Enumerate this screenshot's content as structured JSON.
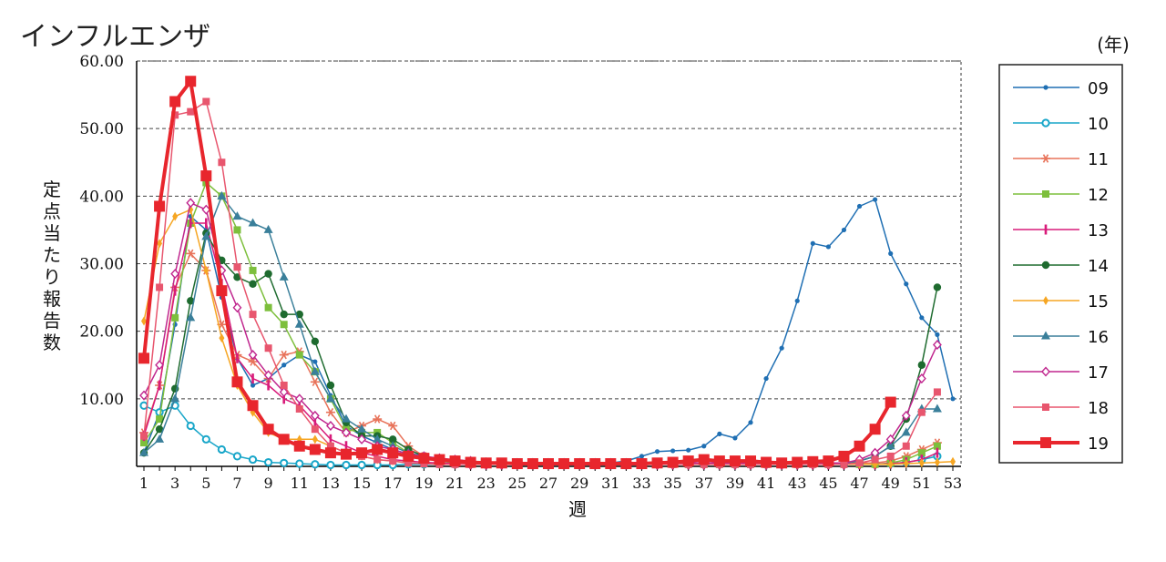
{
  "chart_data": {
    "type": "line",
    "title": "インフルエンザ",
    "xlabel": "週",
    "ylabel": "定点当たり報告数",
    "legend_unit": "(年)",
    "legend_position": "right",
    "grid": "horizontal-dashed",
    "xlim": [
      1,
      53
    ],
    "ylim": [
      0,
      60
    ],
    "x_ticks": [
      1,
      3,
      5,
      7,
      9,
      11,
      13,
      15,
      17,
      19,
      21,
      23,
      25,
      27,
      29,
      31,
      33,
      35,
      37,
      39,
      41,
      43,
      45,
      47,
      49,
      51,
      53
    ],
    "y_ticks": [
      "10.00",
      "20.00",
      "30.00",
      "40.00",
      "50.00",
      "60.00"
    ],
    "series": [
      {
        "name": "09",
        "color": "#1f6fb3",
        "marker": "dot",
        "width": 1.5,
        "x": [
          1,
          2,
          3,
          4,
          5,
          6,
          7,
          8,
          9,
          10,
          11,
          12,
          13,
          14,
          15,
          16,
          17,
          18,
          19,
          20,
          21,
          22,
          23,
          24,
          25,
          26,
          27,
          28,
          29,
          30,
          31,
          32,
          33,
          34,
          35,
          36,
          37,
          38,
          39,
          40,
          41,
          42,
          43,
          44,
          45,
          46,
          47,
          48,
          49,
          50,
          51,
          52,
          53
        ],
        "values": [
          2.0,
          8.0,
          21.0,
          37.0,
          35.0,
          25.0,
          16.0,
          12.0,
          13.0,
          15.0,
          16.5,
          15.5,
          10.5,
          6.0,
          4.5,
          3.5,
          2.5,
          1.8,
          1.2,
          1.0,
          0.8,
          0.6,
          0.5,
          0.5,
          0.4,
          0.4,
          0.4,
          0.4,
          0.4,
          0.4,
          0.5,
          0.8,
          1.5,
          2.2,
          2.3,
          2.4,
          3.0,
          4.8,
          4.2,
          6.5,
          13.0,
          17.5,
          24.5,
          33.0,
          32.5,
          35.0,
          38.5,
          39.5,
          31.5,
          27.0,
          22.0,
          19.5,
          10.0
        ]
      },
      {
        "name": "10",
        "color": "#18a6c9",
        "marker": "circle",
        "width": 1.5,
        "x": [
          1,
          2,
          3,
          4,
          5,
          6,
          7,
          8,
          9,
          10,
          11,
          12,
          13,
          14,
          15,
          16,
          17,
          18,
          19,
          20,
          21,
          22,
          23,
          24,
          25,
          26,
          27,
          28,
          29,
          30,
          31,
          32,
          33,
          34,
          35,
          36,
          37,
          38,
          39,
          40,
          41,
          42,
          43,
          44,
          45,
          46,
          47,
          48,
          49,
          50,
          51,
          52
        ],
        "values": [
          9.0,
          8.0,
          9.0,
          6.0,
          4.0,
          2.5,
          1.5,
          1.0,
          0.6,
          0.5,
          0.4,
          0.3,
          0.2,
          0.2,
          0.2,
          0.2,
          0.2,
          0.3,
          0.3,
          0.3,
          0.3,
          0.3,
          0.3,
          0.3,
          0.3,
          0.3,
          0.3,
          0.3,
          0.3,
          0.3,
          0.3,
          0.3,
          0.3,
          0.3,
          0.3,
          0.3,
          0.3,
          0.3,
          0.3,
          0.3,
          0.3,
          0.3,
          0.3,
          0.3,
          0.3,
          0.3,
          0.3,
          0.3,
          0.4,
          0.6,
          1.0,
          1.5
        ]
      },
      {
        "name": "11",
        "color": "#e8735a",
        "marker": "asterisk",
        "width": 1.5,
        "x": [
          1,
          2,
          3,
          4,
          5,
          6,
          7,
          8,
          9,
          10,
          11,
          12,
          13,
          14,
          15,
          16,
          17,
          18,
          19,
          20,
          21,
          22,
          23,
          24,
          25,
          26,
          27,
          28,
          29,
          30,
          31,
          32,
          33,
          34,
          35,
          36,
          37,
          38,
          39,
          40,
          41,
          42,
          43,
          44,
          45,
          46,
          47,
          48,
          49,
          50,
          51,
          52
        ],
        "values": [
          5.0,
          12.0,
          26.5,
          31.5,
          29.0,
          21.0,
          16.5,
          15.5,
          13.0,
          16.5,
          17.0,
          12.5,
          8.0,
          5.0,
          6.0,
          7.0,
          6.0,
          3.0,
          1.5,
          1.0,
          0.8,
          0.6,
          0.5,
          0.5,
          0.5,
          0.5,
          0.5,
          0.5,
          0.5,
          0.5,
          0.5,
          0.5,
          0.5,
          0.5,
          0.5,
          0.5,
          0.5,
          0.5,
          0.5,
          0.5,
          0.5,
          0.5,
          0.5,
          0.5,
          0.5,
          0.5,
          0.5,
          0.5,
          0.8,
          1.5,
          2.5,
          3.5
        ]
      },
      {
        "name": "12",
        "color": "#7dbf3c",
        "marker": "square",
        "width": 1.5,
        "x": [
          1,
          2,
          3,
          4,
          5,
          6,
          7,
          8,
          9,
          10,
          11,
          12,
          13,
          14,
          15,
          16,
          17,
          18,
          19,
          20,
          21,
          22,
          23,
          24,
          25,
          26,
          27,
          28,
          29,
          30,
          31,
          32,
          33,
          34,
          35,
          36,
          37,
          38,
          39,
          40,
          41,
          42,
          43,
          44,
          45,
          46,
          47,
          48,
          49,
          50,
          51,
          52
        ],
        "values": [
          3.5,
          7.0,
          22.0,
          36.0,
          42.0,
          40.0,
          35.0,
          29.0,
          23.5,
          21.0,
          16.5,
          14.0,
          10.0,
          5.5,
          5.0,
          5.0,
          3.5,
          2.0,
          1.2,
          0.8,
          0.5,
          0.4,
          0.3,
          0.3,
          0.3,
          0.3,
          0.3,
          0.3,
          0.3,
          0.3,
          0.3,
          0.3,
          0.3,
          0.3,
          0.3,
          0.3,
          0.3,
          0.3,
          0.3,
          0.3,
          0.3,
          0.3,
          0.3,
          0.3,
          0.3,
          0.3,
          0.3,
          0.3,
          0.5,
          1.0,
          2.0,
          3.0
        ]
      },
      {
        "name": "13",
        "color": "#d81b7a",
        "marker": "bar",
        "width": 1.5,
        "x": [
          1,
          2,
          3,
          4,
          5,
          6,
          7,
          8,
          9,
          10,
          11,
          12,
          13,
          14,
          15,
          16,
          17,
          18,
          19,
          20,
          21,
          22,
          23,
          24,
          25,
          26,
          27,
          28,
          29,
          30,
          31,
          32,
          33,
          34,
          35,
          36,
          37,
          38,
          39,
          40,
          41,
          42,
          43,
          44,
          45,
          46,
          47,
          48,
          49,
          50,
          51,
          52
        ],
        "values": [
          4.5,
          12.0,
          26.0,
          36.0,
          36.0,
          27.0,
          16.0,
          13.0,
          12.0,
          10.0,
          9.0,
          6.5,
          4.0,
          3.0,
          2.0,
          1.5,
          1.0,
          0.8,
          0.6,
          0.5,
          0.4,
          0.3,
          0.3,
          0.3,
          0.3,
          0.3,
          0.3,
          0.3,
          0.3,
          0.3,
          0.3,
          0.3,
          0.3,
          0.3,
          0.3,
          0.3,
          0.3,
          0.3,
          0.3,
          0.3,
          0.3,
          0.3,
          0.3,
          0.3,
          0.3,
          0.3,
          0.3,
          0.3,
          0.4,
          0.6,
          1.0,
          2.0
        ]
      },
      {
        "name": "14",
        "color": "#1e6b2f",
        "marker": "dot-large",
        "width": 1.5,
        "x": [
          1,
          2,
          3,
          4,
          5,
          6,
          7,
          8,
          9,
          10,
          11,
          12,
          13,
          14,
          15,
          16,
          17,
          18,
          19,
          20,
          21,
          22,
          23,
          24,
          25,
          26,
          27,
          28,
          29,
          30,
          31,
          32,
          33,
          34,
          35,
          36,
          37,
          38,
          39,
          40,
          41,
          42,
          43,
          44,
          45,
          46,
          47,
          48,
          49,
          50,
          51,
          52
        ],
        "values": [
          2.0,
          5.5,
          11.5,
          24.5,
          34.5,
          30.5,
          28.0,
          27.0,
          28.5,
          22.5,
          22.5,
          18.5,
          12.0,
          6.5,
          4.5,
          4.5,
          4.0,
          2.5,
          1.5,
          1.0,
          0.8,
          0.6,
          0.5,
          0.5,
          0.5,
          0.5,
          0.5,
          0.5,
          0.5,
          0.5,
          0.5,
          0.5,
          0.5,
          0.5,
          0.5,
          0.5,
          0.5,
          0.5,
          0.5,
          0.5,
          0.5,
          0.5,
          0.5,
          0.5,
          0.5,
          0.5,
          0.8,
          1.5,
          3.0,
          7.0,
          15.0,
          26.5
        ]
      },
      {
        "name": "15",
        "color": "#f6a623",
        "marker": "diamond-filled",
        "width": 1.5,
        "x": [
          1,
          2,
          3,
          4,
          5,
          6,
          7,
          8,
          9,
          10,
          11,
          12,
          13,
          14,
          15,
          16,
          17,
          18,
          19,
          20,
          21,
          22,
          23,
          24,
          25,
          26,
          27,
          28,
          29,
          30,
          31,
          32,
          33,
          34,
          35,
          36,
          37,
          38,
          39,
          40,
          41,
          42,
          43,
          44,
          45,
          46,
          47,
          48,
          49,
          50,
          51,
          52,
          53
        ],
        "values": [
          21.5,
          33.0,
          37.0,
          38.0,
          29.0,
          19.0,
          12.0,
          8.0,
          5.0,
          4.0,
          4.0,
          4.0,
          3.0,
          2.0,
          1.5,
          1.0,
          0.8,
          0.5,
          0.4,
          0.3,
          0.3,
          0.3,
          0.3,
          0.3,
          0.3,
          0.3,
          0.3,
          0.3,
          0.3,
          0.3,
          0.3,
          0.3,
          0.3,
          0.3,
          0.3,
          0.3,
          0.3,
          0.3,
          0.3,
          0.3,
          0.3,
          0.3,
          0.3,
          0.3,
          0.3,
          0.3,
          0.3,
          0.3,
          0.3,
          0.4,
          0.5,
          0.6,
          0.7
        ]
      },
      {
        "name": "16",
        "color": "#3a7f9a",
        "marker": "triangle",
        "width": 1.5,
        "x": [
          1,
          2,
          3,
          4,
          5,
          6,
          7,
          8,
          9,
          10,
          11,
          12,
          13,
          14,
          15,
          16,
          17,
          18,
          19,
          20,
          21,
          22,
          23,
          24,
          25,
          26,
          27,
          28,
          29,
          30,
          31,
          32,
          33,
          34,
          35,
          36,
          37,
          38,
          39,
          40,
          41,
          42,
          43,
          44,
          45,
          46,
          47,
          48,
          49,
          50,
          51,
          52
        ],
        "values": [
          2.0,
          4.0,
          10.0,
          22.0,
          34.0,
          40.0,
          37.0,
          36.0,
          35.0,
          28.0,
          21.0,
          14.0,
          10.0,
          7.0,
          5.5,
          4.0,
          3.0,
          2.0,
          1.5,
          1.0,
          0.8,
          0.6,
          0.5,
          0.5,
          0.5,
          0.5,
          0.5,
          0.5,
          0.5,
          0.5,
          0.5,
          0.5,
          0.5,
          0.5,
          0.5,
          0.5,
          0.5,
          0.5,
          0.5,
          0.5,
          0.5,
          0.5,
          0.5,
          0.5,
          0.5,
          0.5,
          0.8,
          1.5,
          3.0,
          5.0,
          8.5,
          8.5
        ]
      },
      {
        "name": "17",
        "color": "#c0268e",
        "marker": "diamond-open",
        "width": 1.5,
        "x": [
          1,
          2,
          3,
          4,
          5,
          6,
          7,
          8,
          9,
          10,
          11,
          12,
          13,
          14,
          15,
          16,
          17,
          18,
          19,
          20,
          21,
          22,
          23,
          24,
          25,
          26,
          27,
          28,
          29,
          30,
          31,
          32,
          33,
          34,
          35,
          36,
          37,
          38,
          39,
          40,
          41,
          42,
          43,
          44,
          45,
          46,
          47,
          48,
          49,
          50,
          51,
          52
        ],
        "values": [
          10.5,
          15.0,
          28.5,
          39.0,
          38.0,
          29.0,
          23.5,
          16.5,
          13.5,
          11.0,
          10.0,
          7.5,
          6.0,
          5.0,
          4.0,
          3.0,
          2.5,
          1.8,
          1.5,
          1.2,
          1.0,
          0.8,
          0.6,
          0.5,
          0.5,
          0.5,
          0.5,
          0.5,
          0.5,
          0.5,
          0.5,
          0.5,
          0.5,
          0.5,
          0.5,
          0.5,
          0.5,
          0.5,
          0.5,
          0.5,
          0.5,
          0.5,
          0.5,
          0.5,
          0.5,
          0.5,
          1.0,
          2.0,
          4.0,
          7.5,
          13.0,
          18.0
        ]
      },
      {
        "name": "18",
        "color": "#e8566e",
        "marker": "square",
        "width": 1.5,
        "x": [
          1,
          2,
          3,
          4,
          5,
          6,
          7,
          8,
          9,
          10,
          11,
          12,
          13,
          14,
          15,
          16,
          17,
          18,
          19,
          20,
          21,
          22,
          23,
          24,
          25,
          26,
          27,
          28,
          29,
          30,
          31,
          32,
          33,
          34,
          35,
          36,
          37,
          38,
          39,
          40,
          41,
          42,
          43,
          44,
          45,
          46,
          47,
          48,
          49,
          50,
          51,
          52
        ],
        "values": [
          4.5,
          26.5,
          52.0,
          52.5,
          54.0,
          45.0,
          29.5,
          22.5,
          17.5,
          12.0,
          8.5,
          5.5,
          3.0,
          2.0,
          1.5,
          1.0,
          0.8,
          0.5,
          0.4,
          0.3,
          0.3,
          0.3,
          0.3,
          0.3,
          0.3,
          0.3,
          0.3,
          0.3,
          0.3,
          0.3,
          0.3,
          0.3,
          0.3,
          0.3,
          0.3,
          0.3,
          0.3,
          0.3,
          0.3,
          0.3,
          0.3,
          0.3,
          0.3,
          0.3,
          0.3,
          0.3,
          0.5,
          1.0,
          1.5,
          3.0,
          8.0,
          11.0
        ]
      },
      {
        "name": "19",
        "color": "#e8262d",
        "marker": "square-large",
        "width": 4,
        "x": [
          1,
          2,
          3,
          4,
          5,
          6,
          7,
          8,
          9,
          10,
          11,
          12,
          13,
          14,
          15,
          16,
          17,
          18,
          19,
          20,
          21,
          22,
          23,
          24,
          25,
          26,
          27,
          28,
          29,
          30,
          31,
          32,
          33,
          34,
          35,
          36,
          37,
          38,
          39,
          40,
          41,
          42,
          43,
          44,
          45,
          46,
          47,
          48,
          49
        ],
        "values": [
          16.0,
          38.5,
          54.0,
          57.0,
          43.0,
          26.0,
          12.5,
          9.0,
          5.5,
          4.0,
          3.0,
          2.5,
          2.0,
          1.8,
          2.0,
          2.5,
          2.0,
          1.5,
          1.2,
          1.0,
          0.8,
          0.6,
          0.5,
          0.5,
          0.4,
          0.4,
          0.4,
          0.4,
          0.4,
          0.4,
          0.4,
          0.4,
          0.4,
          0.5,
          0.6,
          0.8,
          1.0,
          0.8,
          0.8,
          0.8,
          0.6,
          0.5,
          0.6,
          0.7,
          0.8,
          1.5,
          3.0,
          5.5,
          9.5
        ]
      }
    ]
  }
}
